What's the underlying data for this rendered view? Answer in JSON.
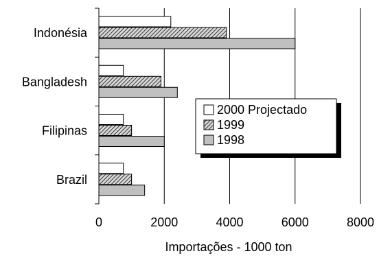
{
  "chart_data": {
    "type": "bar",
    "orientation": "horizontal",
    "categories": [
      "Indonésia",
      "Bangladesh",
      "Filipinas",
      "Brazil"
    ],
    "series": [
      {
        "name": "2000 Projectado",
        "values": [
          2200,
          750,
          750,
          750
        ],
        "color": "#ffffff",
        "pattern": "none"
      },
      {
        "name": "1999",
        "values": [
          3900,
          1900,
          1000,
          1000
        ],
        "color": "#8c8c8c",
        "pattern": "hatch"
      },
      {
        "name": "1998",
        "values": [
          6000,
          2400,
          2000,
          1400
        ],
        "color": "#c0c0c0",
        "pattern": "none"
      }
    ],
    "xlabel": "Importações - 1000 ton",
    "ylabel": "",
    "xlim": [
      0,
      8000
    ],
    "xticks": [
      "0",
      "2000",
      "4000",
      "6000",
      "8000"
    ],
    "grid": "vertical",
    "legend": "center-right"
  }
}
